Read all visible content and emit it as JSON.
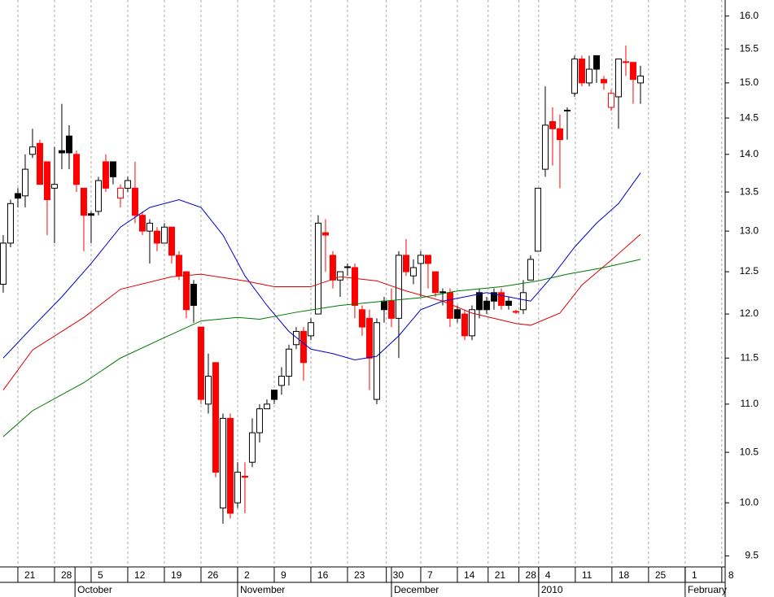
{
  "chart_data": {
    "type": "candlestick",
    "log_scale": true,
    "grid": true,
    "up_color": "#000000",
    "down_color": "#ff0000",
    "xlim": [
      -0.44,
      98.56
    ],
    "ylim": [
      9.4,
      16.25
    ],
    "yticks": [
      {
        "value": 16,
        "label": "16.0"
      },
      15.5,
      {
        "value": 15,
        "label": "15.0"
      },
      14.5,
      {
        "value": 14,
        "label": "14.0"
      },
      13.5,
      {
        "value": 13,
        "label": "13.0"
      },
      12.5,
      {
        "value": 12,
        "label": "12.0"
      },
      11.5,
      {
        "value": 11,
        "label": "11.0"
      },
      10.5,
      {
        "value": 10,
        "label": "10.0"
      },
      9.5
    ],
    "xticks": [
      {
        "value": 2,
        "label": "21"
      },
      {
        "value": 7,
        "label": "28"
      },
      {
        "value": 12,
        "label": "5"
      },
      {
        "value": 17,
        "label": "12"
      },
      {
        "value": 22,
        "label": "19"
      },
      {
        "value": 27,
        "label": "26"
      },
      {
        "value": 32,
        "label": "2"
      },
      {
        "value": 37,
        "label": "9"
      },
      {
        "value": 42,
        "label": "16"
      },
      {
        "value": 47,
        "label": "23"
      },
      {
        "value": 52.3,
        "label": "30"
      },
      {
        "value": 57,
        "label": "7"
      },
      {
        "value": 62,
        "label": "14"
      },
      {
        "value": 66.2,
        "label": "21"
      },
      {
        "value": 70.4,
        "label": "28"
      },
      {
        "value": 73.1,
        "label": "4"
      },
      {
        "value": 78.1,
        "label": "11"
      },
      {
        "value": 83.1,
        "label": "18"
      },
      {
        "value": 88.1,
        "label": "25"
      },
      {
        "value": 93.1,
        "label": "1"
      },
      {
        "value": 98.1,
        "label": "8"
      }
    ],
    "month_ticks": [
      {
        "value": 9.8,
        "label": "October"
      },
      {
        "value": 32,
        "label": "November"
      },
      {
        "value": 53,
        "label": "December"
      },
      {
        "value": 73.1,
        "label": "2010"
      },
      {
        "value": 93.1,
        "label": "February"
      }
    ],
    "x": [
      0,
      1,
      2,
      3,
      4,
      5,
      6,
      7,
      8,
      9,
      10,
      11,
      12,
      13,
      14,
      15,
      16,
      17,
      18,
      19,
      20,
      21,
      22,
      23,
      24,
      25,
      26,
      27,
      28,
      29,
      30,
      31,
      32,
      33,
      34,
      35,
      36,
      37,
      38,
      39,
      40,
      41,
      42,
      43,
      44,
      45,
      46,
      47,
      48,
      49,
      50,
      51,
      52,
      53,
      54,
      55,
      56,
      57,
      58,
      59,
      60,
      61,
      62,
      63,
      64,
      65,
      66,
      67,
      68,
      69,
      70,
      71,
      72,
      73,
      74,
      75,
      76,
      77,
      78,
      79,
      80,
      81,
      82,
      83,
      84,
      85,
      86,
      87
    ],
    "open": [
      12.35,
      12.85,
      13.48,
      13.45,
      14.0,
      14.15,
      13.9,
      13.55,
      14.05,
      14.25,
      14.0,
      13.55,
      13.22,
      13.25,
      13.9,
      13.9,
      13.42,
      13.55,
      13.55,
      13.2,
      13.0,
      13.0,
      12.85,
      13.05,
      12.7,
      12.5,
      12.35,
      11.85,
      11.0,
      11.45,
      9.95,
      10.85,
      10.0,
      10.26,
      10.4,
      10.7,
      10.95,
      11.15,
      11.2,
      11.3,
      11.65,
      11.8,
      11.75,
      12.0,
      12.98,
      12.7,
      12.4,
      12.55,
      12.55,
      12.05,
      11.95,
      11.05,
      12.15,
      12.15,
      11.95,
      12.7,
      12.45,
      12.6,
      12.7,
      12.5,
      12.26,
      12.25,
      12.05,
      12.0,
      11.75,
      12.25,
      12.15,
      12.25,
      12.25,
      12.15,
      12.03,
      12.05,
      12.4,
      12.75,
      13.8,
      14.45,
      14.35,
      14.61,
      14.85,
      15.35,
      15.0,
      15.4,
      15.05,
      14.65,
      14.8,
      15.31,
      15.3,
      15.0
    ],
    "high": [
      12.95,
      13.4,
      13.55,
      14.0,
      14.35,
      14.2,
      13.9,
      14.1,
      14.7,
      14.4,
      14.05,
      13.55,
      13.25,
      13.7,
      14.0,
      13.9,
      13.6,
      13.7,
      13.9,
      13.25,
      13.15,
      13.05,
      13.1,
      13.05,
      12.75,
      12.5,
      12.4,
      11.85,
      11.55,
      11.45,
      10.9,
      10.9,
      10.4,
      10.4,
      10.85,
      11.0,
      11.05,
      11.15,
      11.4,
      11.65,
      11.85,
      11.85,
      11.95,
      13.2,
      13.15,
      12.75,
      12.5,
      12.6,
      12.6,
      12.1,
      12.05,
      11.95,
      12.2,
      12.3,
      12.75,
      12.9,
      12.65,
      12.75,
      12.7,
      12.5,
      12.3,
      12.3,
      12.1,
      12.05,
      12.1,
      12.3,
      12.2,
      12.3,
      12.3,
      12.2,
      12.05,
      12.4,
      12.7,
      13.55,
      14.95,
      14.65,
      14.55,
      14.65,
      15.4,
      15.4,
      15.4,
      15.4,
      15.1,
      14.9,
      15.35,
      15.55,
      15.3,
      15.25
    ],
    "low": [
      12.25,
      12.8,
      13.3,
      13.3,
      13.95,
      13.6,
      12.95,
      12.85,
      13.8,
      13.8,
      13.5,
      12.75,
      12.85,
      13.2,
      13.5,
      13.6,
      13.3,
      13.5,
      13.1,
      12.95,
      12.6,
      12.75,
      12.85,
      12.6,
      12.4,
      11.95,
      11.9,
      11.0,
      10.9,
      10.25,
      9.8,
      9.85,
      9.95,
      9.9,
      10.35,
      10.6,
      10.95,
      11.0,
      11.1,
      11.2,
      11.6,
      11.25,
      11.7,
      12.0,
      12.5,
      12.3,
      12.2,
      12.45,
      11.95,
      11.75,
      11.15,
      11.0,
      11.9,
      11.85,
      11.5,
      12.45,
      12.35,
      12.2,
      12.3,
      12.2,
      12.1,
      11.85,
      11.9,
      11.7,
      11.7,
      11.95,
      12.0,
      12.05,
      12.05,
      12.05,
      12.0,
      12.0,
      12.4,
      12.75,
      13.7,
      13.85,
      13.55,
      14.2,
      14.8,
      14.95,
      14.95,
      15.0,
      14.9,
      14.6,
      14.35,
      15.1,
      14.7,
      14.7
    ],
    "close": [
      12.85,
      13.35,
      13.42,
      13.8,
      14.1,
      13.6,
      13.4,
      13.6,
      14.02,
      14.02,
      13.6,
      13.2,
      13.2,
      13.65,
      13.55,
      13.7,
      13.55,
      13.65,
      13.2,
      13.0,
      13.1,
      12.85,
      13.05,
      12.7,
      12.45,
      12.05,
      12.1,
      11.05,
      11.3,
      10.3,
      10.85,
      9.9,
      10.3,
      10.25,
      10.7,
      10.95,
      11.0,
      11.05,
      11.3,
      11.6,
      11.8,
      11.45,
      11.9,
      13.1,
      12.95,
      12.4,
      12.5,
      12.56,
      12.1,
      11.85,
      11.5,
      11.9,
      12.05,
      11.95,
      12.7,
      12.5,
      12.55,
      12.7,
      12.6,
      12.25,
      12.25,
      11.95,
      11.95,
      11.75,
      12.05,
      12.05,
      12.05,
      12.15,
      12.1,
      12.1,
      12.02,
      12.25,
      12.65,
      13.55,
      14.4,
      14.35,
      14.2,
      14.6,
      15.35,
      15.0,
      15.2,
      15.2,
      15.0,
      14.85,
      15.35,
      15.3,
      15.05,
      15.1
    ],
    "overlays": [
      {
        "color": "#0000cc",
        "x": [
          0,
          4,
          8,
          12,
          16,
          20,
          24,
          27,
          30,
          33,
          36,
          39,
          42,
          45,
          48,
          51,
          54,
          57,
          60,
          63,
          66,
          69,
          72,
          75,
          78,
          81,
          84,
          87
        ],
        "values": [
          11.5,
          11.85,
          12.2,
          12.6,
          13.05,
          13.3,
          13.4,
          13.3,
          12.95,
          12.45,
          12.1,
          11.8,
          11.6,
          11.55,
          11.48,
          11.52,
          11.75,
          12.05,
          12.15,
          12.2,
          12.25,
          12.2,
          12.15,
          12.45,
          12.8,
          13.1,
          13.35,
          13.75
        ]
      },
      {
        "color": "#dd0000",
        "x": [
          0,
          4,
          11,
          16,
          23,
          27,
          33,
          37,
          42,
          46,
          51,
          55,
          60,
          64,
          70,
          72,
          76,
          79,
          83,
          87
        ],
        "values": [
          11.15,
          11.59,
          11.96,
          12.29,
          12.44,
          12.47,
          12.39,
          12.32,
          12.32,
          12.44,
          12.39,
          12.27,
          12.15,
          12.01,
          11.89,
          11.87,
          12.01,
          12.34,
          12.64,
          12.96
        ]
      },
      {
        "color": "#007700",
        "x": [
          0,
          4,
          11,
          16,
          22,
          27,
          32,
          35,
          40,
          46,
          52,
          57,
          62,
          68,
          73,
          77,
          82,
          87
        ],
        "values": [
          10.66,
          10.93,
          11.23,
          11.5,
          11.73,
          11.92,
          11.96,
          11.94,
          12.02,
          12.1,
          12.15,
          12.19,
          12.27,
          12.32,
          12.39,
          12.47,
          12.55,
          12.65
        ]
      }
    ]
  }
}
